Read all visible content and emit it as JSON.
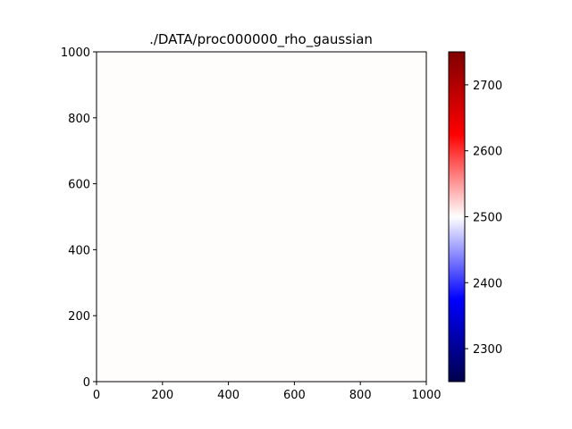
{
  "chart_data": {
    "type": "heatmap",
    "title": "./DATA/proc000000_rho_gaussian",
    "xlabel": "",
    "ylabel": "",
    "xlim": [
      0,
      1000
    ],
    "ylim": [
      0,
      1000
    ],
    "x_ticks": [
      0,
      200,
      400,
      600,
      800,
      1000
    ],
    "y_ticks": [
      0,
      200,
      400,
      600,
      800,
      1000
    ],
    "field": {
      "uniform_value": 2500,
      "color": "#fffcfc"
    },
    "colorbar": {
      "colormap": "seismic",
      "range": [
        2250,
        2750
      ],
      "ticks": [
        2300,
        2400,
        2500,
        2600,
        2700
      ],
      "stops": [
        "#00004c",
        "#0000ff",
        "#ffffff",
        "#ff0000",
        "#7f0000"
      ]
    },
    "grid": false
  }
}
